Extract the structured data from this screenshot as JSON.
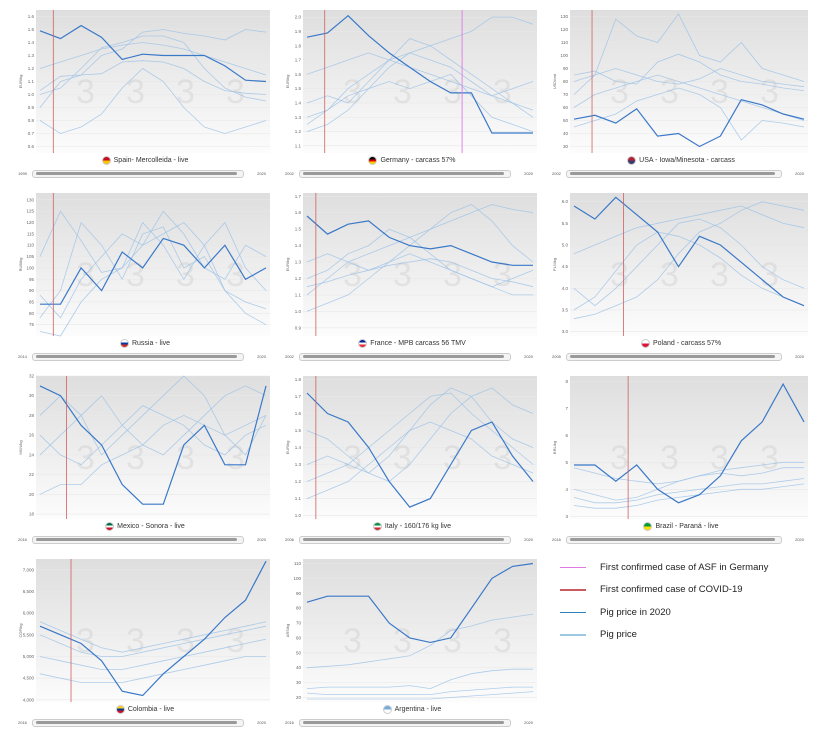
{
  "colors": {
    "asf": "#e07ae0",
    "covid": "#d0605f",
    "price_2020": "#3a78c8",
    "pig_price": "#9cc2e6"
  },
  "legend": [
    {
      "label": "First confirmed case of ASF in Germany",
      "color": "#e07ae0"
    },
    {
      "label": "First confirmed case of COVID-19",
      "color": "#c95a62"
    },
    {
      "label": "Pig price in 2020",
      "color": "#2f7fb8"
    },
    {
      "label": "Pig price",
      "color": "#9cc8e0"
    }
  ],
  "chart_data": [
    {
      "type": "line",
      "title": "Spain- Mercolleida - live",
      "flag": [
        "#c60b1e",
        "#ffc400"
      ],
      "ylabel": "EUR/kg",
      "yticks": [
        "0.6",
        "0.7",
        "0.8",
        "0.9",
        "1.0",
        "1.1",
        "1.2",
        "1.3",
        "1.4",
        "1.5",
        "1.6"
      ],
      "ylim": [
        0.55,
        1.65
      ],
      "start_year": "1999",
      "end_year": "2020",
      "covid_week": 4,
      "series_2020": [
        1.49,
        1.43,
        1.53,
        1.44,
        1.27,
        1.31,
        1.3,
        1.3,
        1.3,
        1.22,
        1.11,
        1.1
      ],
      "series": [
        [
          1.03,
          1.14,
          1.15,
          1.16,
          1.25,
          1.26,
          1.25,
          1.2,
          1.1,
          1.03,
          1.01,
          1.0
        ],
        [
          1.0,
          1.05,
          1.2,
          1.36,
          1.4,
          1.45,
          1.45,
          1.4,
          1.2,
          1.05,
          0.98,
          0.95
        ],
        [
          0.9,
          1.1,
          1.15,
          1.3,
          1.35,
          1.48,
          1.5,
          1.47,
          1.45,
          1.42,
          1.5,
          1.48
        ],
        [
          0.8,
          0.7,
          0.75,
          0.85,
          1.05,
          1.2,
          1.1,
          0.9,
          0.75,
          0.7,
          0.75,
          0.8
        ],
        [
          1.2,
          1.25,
          1.3,
          1.35,
          1.38,
          1.4,
          1.38,
          1.35,
          1.3,
          1.25,
          1.2,
          1.15
        ]
      ]
    },
    {
      "type": "line",
      "title": "Germany - carcass 57%",
      "flag": [
        "#000000",
        "#dd0000",
        "#ffce00"
      ],
      "ylabel": "EUR/kg",
      "yticks": [
        "1.1",
        "1.2",
        "1.3",
        "1.4",
        "1.5",
        "1.6",
        "1.7",
        "1.8",
        "1.9",
        "2.0"
      ],
      "ylim": [
        1.05,
        2.05
      ],
      "start_year": "2002",
      "end_year": "2020",
      "covid_week": 5,
      "asf_week": 36,
      "series_2020": [
        1.86,
        1.89,
        2.01,
        1.87,
        1.75,
        1.65,
        1.55,
        1.47,
        1.47,
        1.19,
        1.19,
        1.19
      ],
      "series": [
        [
          1.3,
          1.35,
          1.5,
          1.6,
          1.7,
          1.75,
          1.7,
          1.65,
          1.55,
          1.45,
          1.4,
          1.35
        ],
        [
          1.4,
          1.45,
          1.4,
          1.55,
          1.7,
          1.85,
          1.8,
          1.7,
          1.6,
          1.5,
          1.4,
          1.3
        ],
        [
          1.2,
          1.25,
          1.35,
          1.5,
          1.65,
          1.75,
          1.8,
          1.85,
          1.9,
          2.0,
          2.0,
          1.95
        ],
        [
          1.25,
          1.35,
          1.45,
          1.5,
          1.55,
          1.5,
          1.55,
          1.6,
          1.45,
          1.3,
          1.25,
          1.2
        ],
        [
          1.6,
          1.65,
          1.7,
          1.75,
          1.7,
          1.65,
          1.6,
          1.55,
          1.5,
          1.45,
          1.5,
          1.55
        ]
      ]
    },
    {
      "type": "line",
      "title": "USA - Iowa/Minesota - carcass",
      "flag": [
        "#b22234",
        "#3c3b6e"
      ],
      "ylabel": "USD/cwt",
      "yticks": [
        "30",
        "40",
        "50",
        "60",
        "70",
        "80",
        "90",
        "100",
        "110",
        "120",
        "130"
      ],
      "ylim": [
        25,
        135
      ],
      "start_year": "2002",
      "end_year": "2020",
      "covid_week": 5,
      "series_2020": [
        51,
        54,
        48,
        59,
        38,
        40,
        30,
        38,
        66,
        62,
        55,
        51
      ],
      "series": [
        [
          70,
          85,
          128,
          115,
          110,
          132,
          100,
          95,
          110,
          90,
          85,
          80
        ],
        [
          85,
          88,
          80,
          78,
          95,
          101,
          95,
          85,
          80,
          78,
          75,
          73
        ],
        [
          60,
          70,
          75,
          80,
          85,
          80,
          75,
          70,
          65,
          60,
          55,
          50
        ],
        [
          80,
          85,
          90,
          85,
          80,
          78,
          82,
          90,
          85,
          80,
          78,
          76
        ],
        [
          45,
          50,
          55,
          65,
          70,
          75,
          70,
          60,
          35,
          50,
          48,
          45
        ]
      ]
    },
    {
      "type": "line",
      "title": "Russia - live",
      "flag": [
        "#ffffff",
        "#0039a6",
        "#d52b1e"
      ],
      "ylabel": "RUB/kg",
      "yticks": [
        "75",
        "80",
        "85",
        "90",
        "95",
        "100",
        "105",
        "110",
        "115",
        "120",
        "125",
        "130"
      ],
      "ylim": [
        70,
        133
      ],
      "start_year": "2014",
      "end_year": "2020",
      "covid_week": 4,
      "series_2020": [
        84,
        84,
        100,
        90,
        107,
        100,
        113,
        110,
        100,
        110,
        95,
        100
      ],
      "series": [
        [
          78,
          90,
          120,
          110,
          95,
          115,
          118,
          100,
          105,
          90,
          85,
          82
        ],
        [
          88,
          78,
          95,
          105,
          115,
          110,
          125,
          115,
          100,
          95,
          110,
          105
        ],
        [
          105,
          125,
          112,
          98,
          100,
          120,
          110,
          95,
          110,
          120,
          100,
          90
        ],
        [
          72,
          70,
          85,
          95,
          100,
          110,
          115,
          120,
          110,
          90,
          80,
          75
        ]
      ]
    },
    {
      "type": "line",
      "title": "France - MPB carcass 56 TMV",
      "flag": [
        "#002395",
        "#ffffff",
        "#ed2939"
      ],
      "ylabel": "EUR/kg",
      "yticks": [
        "0.9",
        "1.0",
        "1.1",
        "1.2",
        "1.3",
        "1.4",
        "1.5",
        "1.6",
        "1.7"
      ],
      "ylim": [
        0.85,
        1.72
      ],
      "start_year": "2002",
      "end_year": "2020",
      "covid_week": 3,
      "series_2020": [
        1.58,
        1.47,
        1.53,
        1.55,
        1.45,
        1.4,
        1.38,
        1.4,
        1.35,
        1.3,
        1.28,
        1.28
      ],
      "series": [
        [
          1.1,
          1.2,
          1.3,
          1.35,
          1.4,
          1.45,
          1.5,
          1.55,
          1.6,
          1.65,
          1.62,
          1.6
        ],
        [
          1.2,
          1.25,
          1.35,
          1.4,
          1.5,
          1.45,
          1.35,
          1.25,
          1.2,
          1.15,
          1.1,
          1.1
        ],
        [
          1.0,
          1.05,
          1.1,
          1.2,
          1.3,
          1.4,
          1.5,
          1.6,
          1.65,
          1.55,
          1.4,
          1.3
        ],
        [
          1.3,
          1.35,
          1.3,
          1.25,
          1.3,
          1.35,
          1.3,
          1.25,
          1.2,
          1.15,
          1.2,
          1.25
        ],
        [
          1.15,
          1.18,
          1.22,
          1.25,
          1.28,
          1.3,
          1.32,
          1.3,
          1.25,
          1.2,
          1.18,
          1.15
        ]
      ]
    },
    {
      "type": "line",
      "title": "Poland - carcass 57%",
      "flag": [
        "#ffffff",
        "#dc143c"
      ],
      "ylabel": "PLN/kg",
      "yticks": [
        "3.0",
        "3.5",
        "4.0",
        "4.5",
        "5.0",
        "5.5",
        "6.0"
      ],
      "ylim": [
        2.9,
        6.2
      ],
      "start_year": "2005",
      "end_year": "2020",
      "covid_week": 12,
      "series_2020": [
        5.9,
        5.6,
        6.1,
        5.7,
        5.3,
        4.5,
        5.2,
        5.0,
        4.6,
        4.2,
        3.8,
        3.6
      ],
      "series": [
        [
          4.0,
          3.6,
          4.0,
          4.5,
          5.0,
          5.5,
          5.6,
          5.4,
          5.0,
          4.5,
          4.2,
          4.0
        ],
        [
          3.5,
          3.8,
          4.4,
          5.0,
          5.3,
          5.2,
          5.0,
          4.7,
          4.3,
          4.0,
          3.8,
          3.6
        ],
        [
          4.8,
          5.0,
          5.2,
          5.4,
          5.5,
          5.6,
          5.7,
          5.8,
          5.9,
          5.7,
          5.5,
          5.4
        ],
        [
          3.3,
          3.4,
          3.6,
          3.8,
          4.2,
          4.8,
          5.3,
          5.5,
          5.8,
          6.0,
          5.9,
          5.8
        ]
      ]
    },
    {
      "type": "line",
      "title": "Mexico - Sonora - live",
      "flag": [
        "#006847",
        "#ffffff",
        "#ce1126"
      ],
      "ylabel": "MXN/kg",
      "yticks": [
        "18",
        "20",
        "22",
        "24",
        "26",
        "28",
        "30",
        "32"
      ],
      "ylim": [
        17.5,
        32
      ],
      "start_year": "2016",
      "end_year": "2020",
      "covid_week": 7,
      "series_2020": [
        31,
        30,
        27,
        25,
        21,
        19,
        19,
        25,
        27,
        23,
        23,
        31
      ],
      "series": [
        [
          28,
          30,
          28,
          24,
          26,
          28,
          30,
          32,
          30,
          26,
          24,
          28
        ],
        [
          24,
          26,
          28,
          30,
          27,
          25,
          24,
          26,
          28,
          30,
          31,
          30
        ],
        [
          20,
          21,
          21,
          23,
          24,
          25,
          27,
          28,
          27,
          26,
          27,
          28
        ],
        [
          26,
          24,
          23,
          25,
          27,
          29,
          28,
          27,
          25,
          24,
          26,
          27
        ]
      ]
    },
    {
      "type": "line",
      "title": "Italy - 160/176 kg live",
      "flag": [
        "#009246",
        "#ffffff",
        "#ce2b37"
      ],
      "ylabel": "EUR/kg",
      "yticks": [
        "1.0",
        "1.1",
        "1.2",
        "1.3",
        "1.4",
        "1.5",
        "1.6",
        "1.7",
        "1.8"
      ],
      "ylim": [
        0.98,
        1.82
      ],
      "start_year": "2006",
      "end_year": "2020",
      "covid_week": 3,
      "series_2020": [
        1.72,
        1.6,
        1.55,
        1.4,
        1.2,
        1.05,
        1.1,
        1.3,
        1.5,
        1.55,
        1.35,
        1.2
      ],
      "series": [
        [
          1.3,
          1.35,
          1.3,
          1.25,
          1.35,
          1.5,
          1.65,
          1.75,
          1.7,
          1.55,
          1.45,
          1.4
        ],
        [
          1.5,
          1.45,
          1.35,
          1.25,
          1.2,
          1.3,
          1.45,
          1.6,
          1.7,
          1.75,
          1.65,
          1.6
        ],
        [
          1.2,
          1.25,
          1.3,
          1.4,
          1.5,
          1.6,
          1.7,
          1.72,
          1.6,
          1.5,
          1.4,
          1.3
        ],
        [
          1.1,
          1.15,
          1.2,
          1.3,
          1.4,
          1.5,
          1.55,
          1.5,
          1.45,
          1.35,
          1.3,
          1.25
        ]
      ]
    },
    {
      "type": "line",
      "title": "Brazil - Paraná - live",
      "flag": [
        "#009c3b",
        "#ffdf00"
      ],
      "ylabel": "BRL/kg",
      "yticks": [
        "3",
        "4",
        "5",
        "6",
        "7",
        "8"
      ],
      "ylim": [
        2.9,
        8.2
      ],
      "start_year": "2016",
      "end_year": "2020",
      "covid_week": 13,
      "series_2020": [
        4.9,
        4.9,
        4.3,
        4.9,
        4.0,
        3.5,
        3.8,
        4.5,
        5.8,
        6.5,
        7.9,
        6.5
      ],
      "series": [
        [
          4.0,
          3.8,
          3.6,
          3.7,
          4.0,
          4.3,
          4.5,
          4.6,
          4.5,
          4.6,
          4.8,
          4.8
        ],
        [
          3.7,
          3.5,
          3.5,
          3.6,
          3.8,
          3.9,
          4.0,
          4.1,
          4.2,
          4.2,
          4.3,
          4.4
        ],
        [
          4.8,
          4.6,
          4.4,
          4.3,
          4.2,
          4.3,
          4.5,
          4.7,
          4.8,
          4.9,
          5.0,
          5.0
        ],
        [
          3.4,
          3.3,
          3.3,
          3.4,
          3.6,
          3.7,
          3.8,
          3.9,
          4.0,
          4.0,
          4.1,
          4.2
        ]
      ]
    },
    {
      "type": "line",
      "title": "Colombia - live",
      "flag": [
        "#fcd116",
        "#003893",
        "#ce1126"
      ],
      "ylabel": "COP/kg",
      "yticks": [
        "4,000",
        "4,500",
        "5,000",
        "5,500",
        "6,000",
        "6,500",
        "7,000"
      ],
      "ylim": [
        3950,
        7250
      ],
      "start_year": "2016",
      "end_year": "2020",
      "covid_week": 8,
      "series_2020": [
        5700,
        5500,
        5300,
        4900,
        4200,
        4100,
        4600,
        5000,
        5400,
        5900,
        6300,
        7200
      ],
      "series": [
        [
          5800,
          5600,
          5400,
          5200,
          5100,
          5200,
          5300,
          5400,
          5500,
          5600,
          5700,
          5800
        ],
        [
          5500,
          5300,
          5100,
          5000,
          5000,
          5100,
          5200,
          5300,
          5400,
          5500,
          5600,
          5700
        ],
        [
          5000,
          4900,
          4800,
          4700,
          4700,
          4800,
          4900,
          5000,
          5100,
          5200,
          5300,
          5400
        ],
        [
          4600,
          4500,
          4400,
          4400,
          4400,
          4500,
          4600,
          4700,
          4800,
          4900,
          5000,
          5000
        ]
      ]
    },
    {
      "type": "line",
      "title": "Argentina - live",
      "flag": [
        "#74acdf",
        "#ffffff"
      ],
      "ylabel": "ARS/kg",
      "yticks": [
        "20",
        "30",
        "40",
        "50",
        "60",
        "70",
        "80",
        "90",
        "100",
        "110"
      ],
      "ylim": [
        17,
        113
      ],
      "start_year": "2016",
      "end_year": "2020",
      "series_2020": [
        84,
        88,
        88,
        88,
        70,
        60,
        57,
        60,
        80,
        100,
        108,
        110
      ],
      "series": [
        [
          40,
          41,
          42,
          44,
          46,
          48,
          55,
          65,
          68,
          72,
          74,
          76
        ],
        [
          26,
          27,
          27,
          27,
          27,
          28,
          26,
          32,
          36,
          38,
          39,
          39
        ],
        [
          23,
          22,
          22,
          22,
          22,
          22,
          22,
          24,
          25,
          26,
          27,
          27
        ],
        [
          19,
          19,
          19,
          19,
          19,
          19,
          19,
          20,
          21,
          22,
          23,
          24
        ]
      ]
    }
  ]
}
